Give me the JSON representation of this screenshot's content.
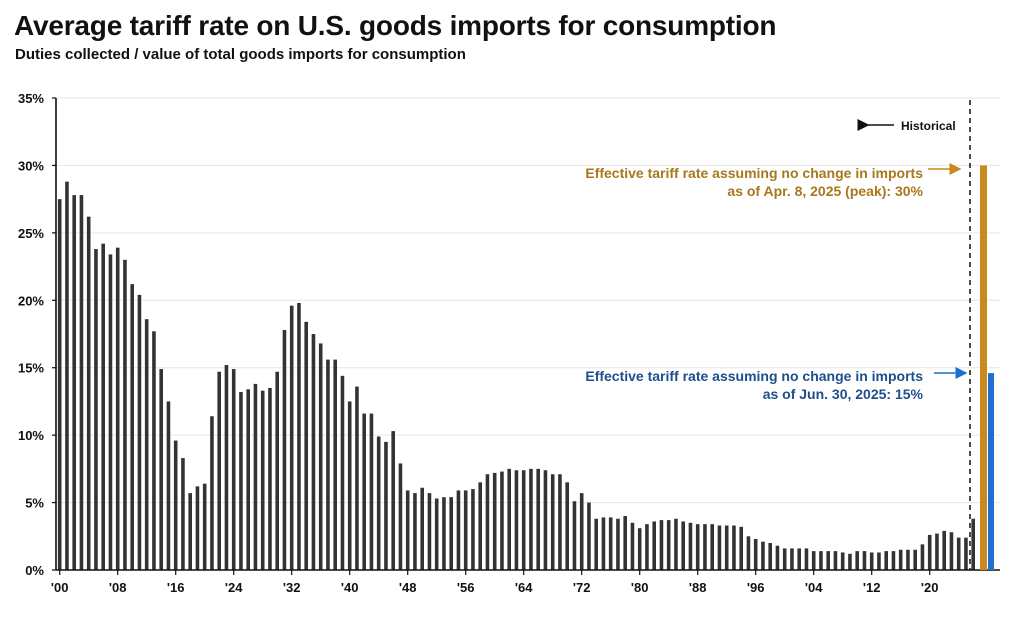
{
  "title": "Average tariff rate on U.S. goods imports for consumption",
  "subtitle": "Duties collected / value of total goods imports for consumption",
  "colors": {
    "bars": "#333333",
    "peak": "#C9891E",
    "current": "#1F6FD1",
    "peak_text": "#A8781A",
    "current_text": "#1F4E8C",
    "grid": "#e6e6e6"
  },
  "chart_data": {
    "type": "bar",
    "title": "Average tariff rate on U.S. goods imports for consumption",
    "subtitle": "Duties collected / value of total goods imports for consumption",
    "xlabel": "",
    "ylabel": "",
    "ylim": [
      0,
      35
    ],
    "y_ticks": [
      0,
      5,
      10,
      15,
      20,
      25,
      30,
      35
    ],
    "y_tick_labels": [
      "0%",
      "5%",
      "10%",
      "15%",
      "20%",
      "25%",
      "30%",
      "35%"
    ],
    "x_tick_labels": [
      {
        "year": 1900,
        "label": "'00"
      },
      {
        "year": 1908,
        "label": "'08"
      },
      {
        "year": 1916,
        "label": "'16"
      },
      {
        "year": 1924,
        "label": "'24"
      },
      {
        "year": 1932,
        "label": "'32"
      },
      {
        "year": 1940,
        "label": "'40"
      },
      {
        "year": 1948,
        "label": "'48"
      },
      {
        "year": 1956,
        "label": "'56"
      },
      {
        "year": 1964,
        "label": "'64"
      },
      {
        "year": 1972,
        "label": "'72"
      },
      {
        "year": 1980,
        "label": "'80"
      },
      {
        "year": 1988,
        "label": "'88"
      },
      {
        "year": 1996,
        "label": "'96"
      },
      {
        "year": 2004,
        "label": "'04"
      },
      {
        "year": 2012,
        "label": "'12"
      },
      {
        "year": 2020,
        "label": "'20"
      }
    ],
    "series": [
      {
        "name": "Historical",
        "start_year": 1900,
        "values": [
          27.5,
          28.8,
          27.8,
          27.8,
          26.2,
          23.8,
          24.2,
          23.4,
          23.9,
          23.0,
          21.2,
          20.4,
          18.6,
          17.7,
          14.9,
          12.5,
          9.6,
          8.3,
          5.7,
          6.2,
          6.4,
          11.4,
          14.7,
          15.2,
          14.9,
          13.2,
          13.4,
          13.8,
          13.3,
          13.5,
          14.7,
          17.8,
          19.6,
          19.8,
          18.4,
          17.5,
          16.8,
          15.6,
          15.6,
          14.4,
          12.5,
          13.6,
          11.6,
          11.6,
          9.9,
          9.5,
          10.3,
          7.9,
          5.9,
          5.7,
          6.1,
          5.7,
          5.3,
          5.4,
          5.4,
          5.9,
          5.9,
          6.0,
          6.5,
          7.1,
          7.2,
          7.3,
          7.5,
          7.4,
          7.4,
          7.5,
          7.5,
          7.4,
          7.1,
          7.1,
          6.5,
          5.1,
          5.7,
          5.0,
          3.8,
          3.9,
          3.9,
          3.8,
          4.0,
          3.5,
          3.1,
          3.4,
          3.6,
          3.7,
          3.7,
          3.8,
          3.6,
          3.5,
          3.4,
          3.4,
          3.4,
          3.3,
          3.3,
          3.3,
          3.2,
          2.5,
          2.3,
          2.1,
          2.0,
          1.8,
          1.6,
          1.6,
          1.6,
          1.6,
          1.4,
          1.4,
          1.4,
          1.4,
          1.3,
          1.2,
          1.4,
          1.4,
          1.3,
          1.3,
          1.4,
          1.4,
          1.5,
          1.5,
          1.5,
          1.9,
          2.6,
          2.7,
          2.9,
          2.8,
          2.4,
          2.4,
          3.8
        ]
      },
      {
        "name": "Effective tariff rate assuming no change in imports as of Apr. 8, 2025 (peak)",
        "values": [
          30
        ]
      },
      {
        "name": "Effective tariff rate assuming no change in imports as of Jun. 30, 2025",
        "values": [
          14.6
        ]
      }
    ],
    "annotations": {
      "historical": "Historical",
      "peak_line1": "Effective tariff rate assuming no change in imports",
      "peak_line2": "as of Apr. 8, 2025 (peak): 30%",
      "current_line1": "Effective tariff rate assuming no change in imports",
      "current_line2": "as of Jun. 30, 2025: 15%"
    }
  }
}
